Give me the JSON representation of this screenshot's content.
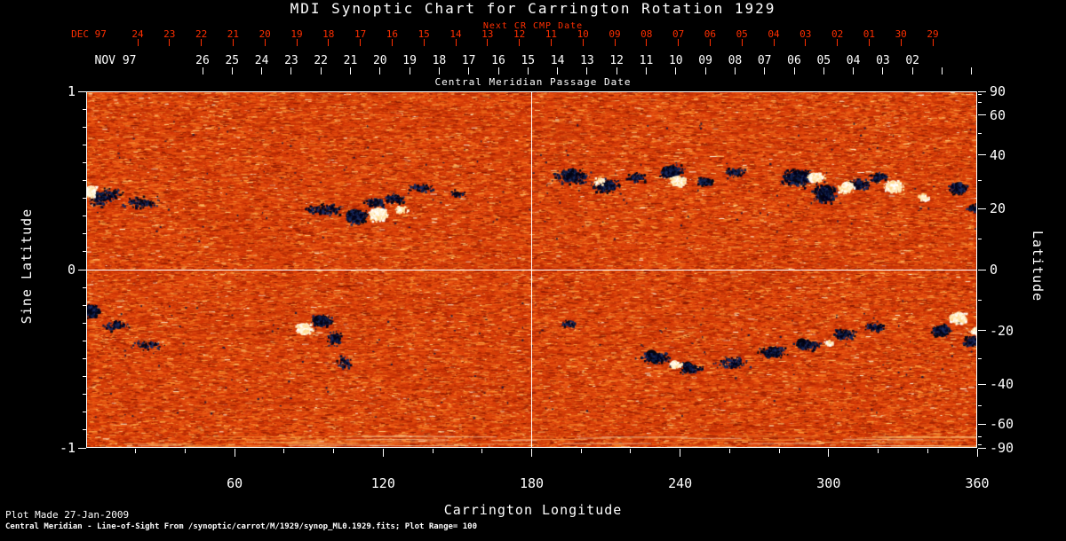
{
  "title": "MDI Synoptic Chart for Carrington Rotation 1929",
  "colors": {
    "background": "#000000",
    "axis_text": "#ffffff",
    "next_cr_axis": "#ff2f00",
    "grid_line": "#ffffff",
    "quiet_sun_base": "#d24309"
  },
  "next_cr_axis": {
    "label": "Next CR CMP Date",
    "month_label": "DEC 97",
    "dates": [
      "24",
      "23",
      "22",
      "21",
      "20",
      "19",
      "18",
      "17",
      "16",
      "15",
      "14",
      "13",
      "12",
      "11",
      "10",
      "09",
      "08",
      "07",
      "06",
      "05",
      "04",
      "03",
      "02",
      "01",
      "30",
      "29"
    ]
  },
  "cmp_axis": {
    "label": "Central Meridian Passage Date",
    "month_label": "NOV 97",
    "dates": [
      "26",
      "25",
      "24",
      "23",
      "22",
      "21",
      "20",
      "19",
      "18",
      "17",
      "16",
      "15",
      "14",
      "13",
      "12",
      "11",
      "10",
      "09",
      "08",
      "07",
      "06",
      "05",
      "04",
      "03",
      "02"
    ]
  },
  "footer": {
    "line1": "Plot Made 27-Jan-2009",
    "line2": "Central Meridian - Line-of-Sight From /synoptic/carrot/M/1929/synop_ML0.1929.fits; Plot Range= 100"
  },
  "chart_data": {
    "type": "heatmap",
    "title": "MDI Synoptic Chart for Carrington Rotation 1929",
    "description": "Solar line-of-sight magnetic field synoptic map; orange speckle = quiet sun, dark blue/black = negative polarity active regions, white/yellow = positive polarity active regions",
    "xlabel": "Carrington Longitude",
    "ylabel_left": "Sine Latitude",
    "ylabel_right": "Latitude",
    "xlim": [
      0,
      360
    ],
    "ylim_sine_latitude": [
      -1,
      1
    ],
    "x_major_ticks": [
      60,
      120,
      180,
      240,
      300,
      360
    ],
    "x_minor_tick_step": 20,
    "y_left_major_ticks": [
      1,
      0,
      -1
    ],
    "y_left_minor_tick_step": 0.1,
    "y_right_major_ticks": [
      90,
      60,
      40,
      20,
      0,
      -20,
      -40,
      -60,
      -90
    ],
    "y_right_minor_ticks": [
      80,
      70,
      50,
      30,
      10,
      -10,
      -30,
      -50,
      -70,
      -80
    ],
    "grid": {
      "horizontal_at_sine_latitude": 0,
      "vertical_at_longitude": 180
    },
    "plot_range_gauss": 100,
    "quiet_sun_palette": [
      "#8c1a02",
      "#b42804",
      "#d23708",
      "#e2480e",
      "#ee5c16",
      "#f67c24",
      "#fa9f42",
      "#ffc878",
      "#fff0d2"
    ],
    "negative_polarity_colors": [
      "#00001c",
      "#0c1c44",
      "#1b2a5e",
      "#060612"
    ],
    "positive_polarity_colors": [
      "#ffffff",
      "#fff6dc",
      "#ffe8b4",
      "#ffd98e"
    ],
    "active_region_format": "[longitude_deg, sine_latitude, width_deg, height_sine, speckle_count, core_blob_count]",
    "active_regions": {
      "dark": [
        [
          8,
          0.42,
          16,
          0.1,
          110,
          0
        ],
        [
          22,
          0.38,
          18,
          0.09,
          90,
          0
        ],
        [
          5,
          0.4,
          10,
          0.1,
          90,
          0
        ],
        [
          96,
          0.34,
          18,
          0.08,
          140,
          0
        ],
        [
          109,
          0.3,
          10,
          0.1,
          320,
          14
        ],
        [
          116,
          0.38,
          10,
          0.06,
          90,
          0
        ],
        [
          124,
          0.4,
          12,
          0.07,
          90,
          0
        ],
        [
          135,
          0.46,
          14,
          0.06,
          60,
          0
        ],
        [
          150,
          0.43,
          10,
          0.05,
          40,
          0
        ],
        [
          196,
          0.53,
          18,
          0.11,
          220,
          2
        ],
        [
          210,
          0.47,
          14,
          0.1,
          190,
          2
        ],
        [
          222,
          0.52,
          10,
          0.07,
          80,
          0
        ],
        [
          236,
          0.55,
          12,
          0.09,
          230,
          6
        ],
        [
          250,
          0.5,
          10,
          0.06,
          90,
          0
        ],
        [
          262,
          0.55,
          12,
          0.06,
          70,
          0
        ],
        [
          287,
          0.52,
          16,
          0.12,
          300,
          8
        ],
        [
          298,
          0.43,
          12,
          0.12,
          260,
          8
        ],
        [
          312,
          0.48,
          10,
          0.08,
          120,
          0
        ],
        [
          320,
          0.52,
          10,
          0.07,
          110,
          0
        ],
        [
          352,
          0.46,
          10,
          0.09,
          150,
          3
        ],
        [
          358,
          0.35,
          6,
          0.06,
          60,
          0
        ],
        [
          2,
          -0.23,
          8,
          0.09,
          200,
          8
        ],
        [
          12,
          -0.31,
          12,
          0.07,
          80,
          0
        ],
        [
          24,
          -0.42,
          18,
          0.08,
          60,
          0
        ],
        [
          95,
          -0.28,
          10,
          0.08,
          190,
          6
        ],
        [
          100,
          -0.38,
          8,
          0.1,
          90,
          0
        ],
        [
          104,
          -0.52,
          8,
          0.1,
          50,
          0
        ],
        [
          194,
          -0.3,
          8,
          0.05,
          40,
          0
        ],
        [
          230,
          -0.49,
          14,
          0.08,
          160,
          2
        ],
        [
          244,
          -0.55,
          12,
          0.08,
          140,
          2
        ],
        [
          261,
          -0.52,
          16,
          0.08,
          110,
          0
        ],
        [
          277,
          -0.46,
          14,
          0.08,
          170,
          4
        ],
        [
          291,
          -0.42,
          12,
          0.07,
          140,
          2
        ],
        [
          306,
          -0.36,
          12,
          0.07,
          110,
          0
        ],
        [
          318,
          -0.32,
          10,
          0.06,
          60,
          0
        ],
        [
          345,
          -0.34,
          10,
          0.08,
          180,
          6
        ],
        [
          357,
          -0.4,
          8,
          0.08,
          100,
          0
        ]
      ],
      "bright": [
        [
          2,
          0.44,
          5,
          0.07,
          110,
          5
        ],
        [
          118,
          0.31,
          9,
          0.08,
          260,
          10
        ],
        [
          127,
          0.34,
          6,
          0.05,
          50,
          0
        ],
        [
          207,
          0.5,
          6,
          0.05,
          40,
          0
        ],
        [
          239,
          0.5,
          8,
          0.07,
          130,
          4
        ],
        [
          295,
          0.52,
          8,
          0.07,
          120,
          2
        ],
        [
          307,
          0.46,
          8,
          0.07,
          140,
          3
        ],
        [
          326,
          0.47,
          10,
          0.08,
          240,
          8
        ],
        [
          338,
          0.41,
          6,
          0.05,
          60,
          0
        ],
        [
          88,
          -0.33,
          8,
          0.08,
          220,
          8
        ],
        [
          238,
          -0.53,
          6,
          0.05,
          80,
          2
        ],
        [
          300,
          -0.41,
          5,
          0.04,
          40,
          0
        ],
        [
          352,
          -0.27,
          9,
          0.08,
          320,
          12
        ],
        [
          359,
          -0.34,
          5,
          0.05,
          60,
          0
        ]
      ]
    }
  }
}
